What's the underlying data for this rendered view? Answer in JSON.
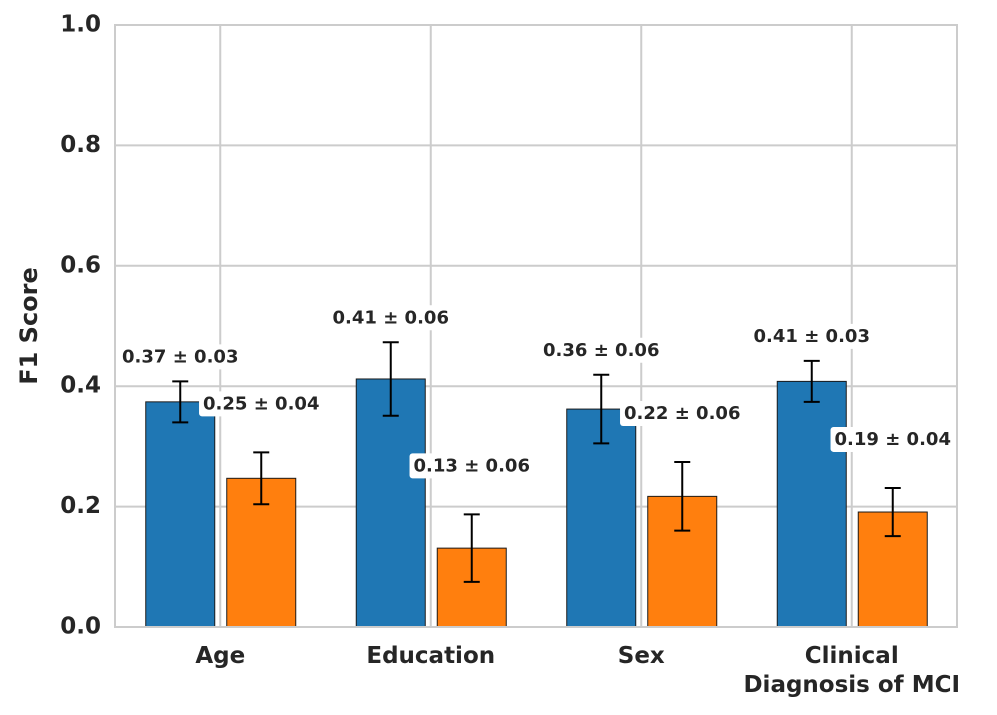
{
  "chart_data": {
    "type": "bar",
    "y_label": "F1 Score",
    "categories": [
      "Age",
      "Education",
      "Sex",
      "Clinical\nDiagnosis of MCI"
    ],
    "series": [
      {
        "color": "#1f77b4",
        "values": [
          0.374,
          0.412,
          0.362,
          0.408
        ],
        "errors": [
          0.034,
          0.061,
          0.057,
          0.034
        ],
        "value_labels": [
          "0.37 ± 0.03",
          "0.41 ± 0.06",
          "0.36 ± 0.06",
          "0.41 ± 0.03"
        ]
      },
      {
        "color": "#ff7f0e",
        "values": [
          0.247,
          0.131,
          0.217,
          0.191
        ],
        "errors": [
          0.043,
          0.056,
          0.057,
          0.04
        ],
        "value_labels": [
          "0.25 ± 0.04",
          "0.13 ± 0.06",
          "0.22 ± 0.06",
          "0.19 ± 0.04"
        ]
      }
    ],
    "ylim": [
      0,
      1
    ],
    "yticks": [
      {
        "value": 0,
        "label": "0.0"
      },
      {
        "value": 0.2,
        "label": "0.2"
      },
      {
        "value": 0.4,
        "label": "0.4"
      },
      {
        "value": 0.6,
        "label": "0.6"
      },
      {
        "value": 0.8,
        "label": "0.8"
      },
      {
        "value": 1,
        "label": "1.0"
      }
    ],
    "grid": true
  }
}
